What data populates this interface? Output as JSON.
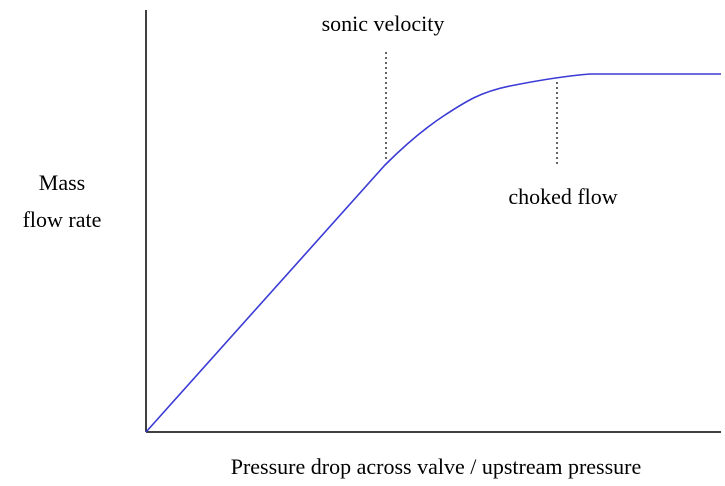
{
  "y_axis_label": {
    "line1": "Mass",
    "line2": "flow rate"
  },
  "x_axis_label": "Pressure drop across valve / upstream pressure",
  "annotations": {
    "sonic": "sonic velocity",
    "choked": "choked flow"
  }
}
